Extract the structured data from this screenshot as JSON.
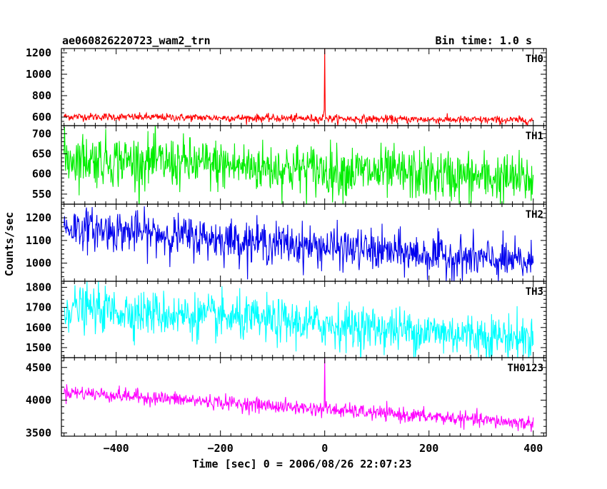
{
  "header": {
    "title": "ae060826220723_wam2_trn",
    "bin_time": "Bin time: 1.0 s"
  },
  "chart_data": {
    "type": "line",
    "xlabel": "Time [sec] 0 = 2006/08/26 22:07:23",
    "ylabel": "Counts/sec",
    "xlim": [
      -505,
      425
    ],
    "x_ticks": [
      -400,
      -200,
      0,
      200,
      400
    ],
    "x_tick_labels": [
      "−400",
      "−200",
      "0",
      "200",
      "400"
    ],
    "x_data_range": [
      -500,
      400
    ],
    "panels": [
      {
        "label": "TH0",
        "color": "#ff0000",
        "ylim": [
          520,
          1240
        ],
        "y_ticks": [
          600,
          800,
          1000,
          1200
        ],
        "y_tick_labels": [
          "600",
          "800",
          "1000",
          "1200"
        ],
        "level_start": 605,
        "level_end": 570,
        "noise": 18,
        "spike": {
          "x": 0,
          "peak": 1240
        }
      },
      {
        "label": "TH1",
        "color": "#00ee00",
        "ylim": [
          525,
          720
        ],
        "y_ticks": [
          550,
          600,
          650,
          700
        ],
        "y_tick_labels": [
          "550",
          "600",
          "650",
          "700"
        ],
        "level_start": 640,
        "level_end": 585,
        "noise": 32
      },
      {
        "label": "TH2",
        "color": "#0000ee",
        "ylim": [
          920,
          1260
        ],
        "y_ticks": [
          1000,
          1100,
          1200
        ],
        "y_tick_labels": [
          "1000",
          "1100",
          "1200"
        ],
        "level_start": 1160,
        "level_end": 1000,
        "noise": 45
      },
      {
        "label": "TH3",
        "color": "#00ffff",
        "ylim": [
          1450,
          1830
        ],
        "y_ticks": [
          1500,
          1600,
          1700,
          1800
        ],
        "y_tick_labels": [
          "1500",
          "1600",
          "1700",
          "1800"
        ],
        "level_start": 1700,
        "level_end": 1545,
        "noise": 55
      },
      {
        "label": "TH0123",
        "color": "#ff00ff",
        "ylim": [
          3450,
          4650
        ],
        "y_ticks": [
          3500,
          4000,
          4500
        ],
        "y_tick_labels": [
          "3500",
          "4000",
          "4500"
        ],
        "level_start": 4130,
        "level_end": 3640,
        "noise": 55,
        "spike": {
          "x": 0,
          "peak": 4650
        }
      }
    ]
  }
}
